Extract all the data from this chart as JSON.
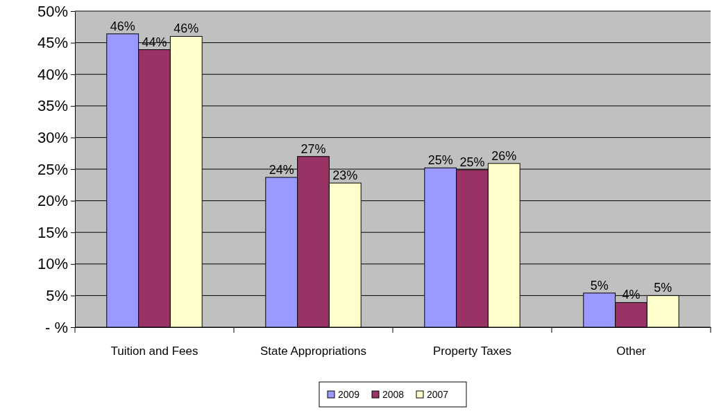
{
  "chart_data": {
    "type": "bar",
    "categories": [
      "Tuition and Fees",
      "State Appropriations",
      "Property Taxes",
      "Other"
    ],
    "series": [
      {
        "name": "2009",
        "color": "#9999ff",
        "values": [
          46.4,
          23.7,
          25.2,
          5.4
        ],
        "value_labels": [
          "46%",
          "24%",
          "25%",
          "5%"
        ]
      },
      {
        "name": "2008",
        "color": "#993366",
        "values": [
          43.9,
          27.0,
          24.9,
          3.9
        ],
        "value_labels": [
          "44%",
          "27%",
          "25%",
          "4%"
        ]
      },
      {
        "name": "2007",
        "color": "#ffffcc",
        "values": [
          46.0,
          22.8,
          25.9,
          5.0
        ],
        "value_labels": [
          "46%",
          "23%",
          "26%",
          "5%"
        ]
      }
    ],
    "ylim": [
      0,
      50
    ],
    "yticks": [
      {
        "value": 0,
        "label": "-   %"
      },
      {
        "value": 5,
        "label": "5%"
      },
      {
        "value": 10,
        "label": "10%"
      },
      {
        "value": 15,
        "label": "15%"
      },
      {
        "value": 20,
        "label": "20%"
      },
      {
        "value": 25,
        "label": "25%"
      },
      {
        "value": 30,
        "label": "30%"
      },
      {
        "value": 35,
        "label": "35%"
      },
      {
        "value": 40,
        "label": "40%"
      },
      {
        "value": 45,
        "label": "45%"
      },
      {
        "value": 50,
        "label": "50%"
      }
    ],
    "grid": "y",
    "legend": "bottom"
  }
}
